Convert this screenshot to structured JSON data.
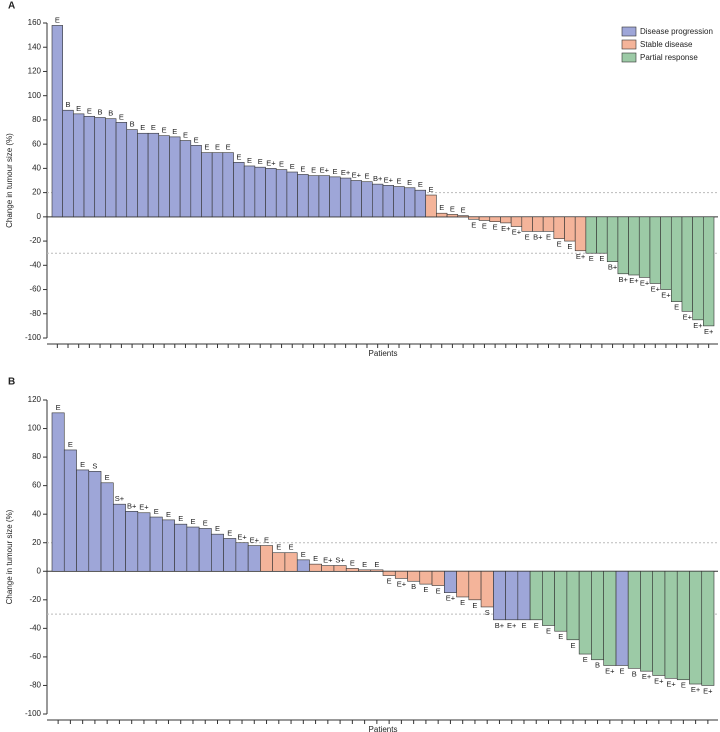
{
  "chart_data": [
    {
      "type": "bar",
      "panel": "A",
      "ylabel": "Change in tumour size (%)",
      "xlabel": "Patients",
      "ylim": [
        -100,
        160
      ],
      "yticks": [
        -100,
        -80,
        -60,
        -40,
        -20,
        0,
        20,
        40,
        60,
        80,
        100,
        120,
        140,
        160
      ],
      "reference_lines": [
        20,
        -30
      ],
      "legend": "top-right",
      "series": [
        {
          "name": "Disease progression",
          "color": "#9ea6d8",
          "values": [
            158,
            88,
            85,
            83,
            82,
            81,
            78,
            72,
            69,
            69,
            67,
            66,
            63,
            59,
            53,
            53,
            53,
            45,
            42,
            41,
            40,
            39,
            37,
            35,
            34,
            34,
            33,
            32,
            30,
            29,
            27,
            26,
            25,
            24,
            22,
            null,
            null,
            null,
            null,
            null,
            null,
            null,
            null,
            null,
            null,
            null,
            null,
            null,
            null,
            null,
            null,
            null,
            null,
            null,
            null,
            null,
            null,
            null,
            null,
            null,
            null,
            null
          ]
        },
        {
          "name": "Stable disease",
          "color": "#f4b49a",
          "values": [
            null,
            null,
            null,
            null,
            null,
            null,
            null,
            null,
            null,
            null,
            null,
            null,
            null,
            null,
            null,
            null,
            null,
            null,
            null,
            null,
            null,
            null,
            null,
            null,
            null,
            null,
            null,
            null,
            null,
            null,
            null,
            null,
            null,
            null,
            null,
            18,
            3,
            2,
            1,
            -2,
            -3,
            -4,
            -5,
            -8,
            -12,
            -12,
            -12,
            -18,
            -20,
            -28,
            null,
            null,
            null,
            null,
            null,
            null,
            null,
            null,
            null,
            null,
            null,
            null
          ]
        },
        {
          "name": "Partial response",
          "color": "#9ccaa6",
          "values": [
            null,
            null,
            null,
            null,
            null,
            null,
            null,
            null,
            null,
            null,
            null,
            null,
            null,
            null,
            null,
            null,
            null,
            null,
            null,
            null,
            null,
            null,
            null,
            null,
            null,
            null,
            null,
            null,
            null,
            null,
            null,
            null,
            null,
            null,
            null,
            null,
            null,
            null,
            null,
            null,
            null,
            null,
            null,
            null,
            null,
            null,
            null,
            null,
            null,
            null,
            -30,
            -30,
            -37,
            -47,
            -48,
            -50,
            -55,
            -60,
            -70,
            -78,
            -85,
            -90
          ]
        }
      ],
      "bar_labels": [
        "E",
        "B",
        "E",
        "E",
        "B",
        "B",
        "E",
        "B",
        "E",
        "E",
        "E",
        "E",
        "E",
        "E",
        "E",
        "E",
        "E",
        "E",
        "E",
        "E",
        "E+",
        "E",
        "E",
        "E",
        "E",
        "E+",
        "E",
        "E+",
        "E+",
        "E",
        "B+",
        "E+",
        "E",
        "E",
        "E",
        "E",
        "E",
        "E",
        "E",
        "E",
        "E",
        "E",
        "E+",
        "E+",
        "E",
        "B+",
        "E",
        "E",
        "E",
        "E+",
        "E",
        "E",
        "B+",
        "B+",
        "E+",
        "E+",
        "E+",
        "E+",
        "E",
        "E+",
        "E+",
        "E+"
      ]
    },
    {
      "type": "bar",
      "panel": "B",
      "ylabel": "Change in tumour size (%)",
      "xlabel": "Patients",
      "ylim": [
        -100,
        120
      ],
      "yticks": [
        -100,
        -80,
        -60,
        -40,
        -20,
        0,
        20,
        40,
        60,
        80,
        100,
        120
      ],
      "reference_lines": [
        20,
        -30
      ],
      "series": [
        {
          "color": "#9ea6d8",
          "values": [
            111,
            85,
            71,
            70,
            62,
            47,
            42,
            41,
            38,
            36,
            33,
            31,
            30,
            26,
            23,
            20,
            18,
            null,
            null,
            null,
            8,
            null,
            null,
            null,
            null,
            null,
            null,
            null,
            null,
            null,
            null,
            null,
            -15,
            null,
            null,
            null,
            -34,
            -34,
            -34,
            null,
            null,
            null,
            null,
            null,
            null,
            null,
            -66,
            null,
            null,
            null,
            null,
            null,
            null,
            null
          ]
        },
        {
          "color": "#f4b49a",
          "values": [
            null,
            null,
            null,
            null,
            null,
            null,
            null,
            null,
            null,
            null,
            null,
            null,
            null,
            null,
            null,
            null,
            null,
            18,
            13,
            13,
            null,
            5,
            4,
            4,
            2,
            1,
            1,
            -3,
            -5,
            -7,
            -9,
            -10,
            null,
            -18,
            -20,
            -25,
            null,
            null,
            null,
            null,
            null,
            null,
            null,
            null,
            null,
            null,
            null,
            null,
            null,
            null,
            null,
            null,
            null,
            null
          ]
        },
        {
          "color": "#9ccaa6",
          "values": [
            null,
            null,
            null,
            null,
            null,
            null,
            null,
            null,
            null,
            null,
            null,
            null,
            null,
            null,
            null,
            null,
            null,
            null,
            null,
            null,
            null,
            null,
            null,
            null,
            null,
            null,
            null,
            null,
            null,
            null,
            null,
            null,
            null,
            null,
            null,
            null,
            null,
            null,
            null,
            -34,
            -38,
            -42,
            -48,
            -58,
            -62,
            -66,
            null,
            -68,
            -70,
            -73,
            -75,
            -76,
            -79,
            -80
          ]
        }
      ],
      "bar_labels": [
        "E",
        "E",
        "E",
        "S",
        "E",
        "S+",
        "B+",
        "E+",
        "E",
        "E",
        "E",
        "E",
        "E",
        "E",
        "E",
        "E+",
        "E+",
        "E",
        "E",
        "E",
        "E",
        "E",
        "E+",
        "S+",
        "E",
        "E",
        "E",
        "E",
        "E+",
        "B",
        "E",
        "E",
        "E+",
        "E",
        "E",
        "S",
        "B+",
        "E+",
        "E",
        "E",
        "E",
        "E",
        "E",
        "E",
        "B",
        "E+",
        "E",
        "B",
        "E+",
        "E+",
        "E+",
        "E",
        "E+",
        "E+"
      ]
    }
  ]
}
